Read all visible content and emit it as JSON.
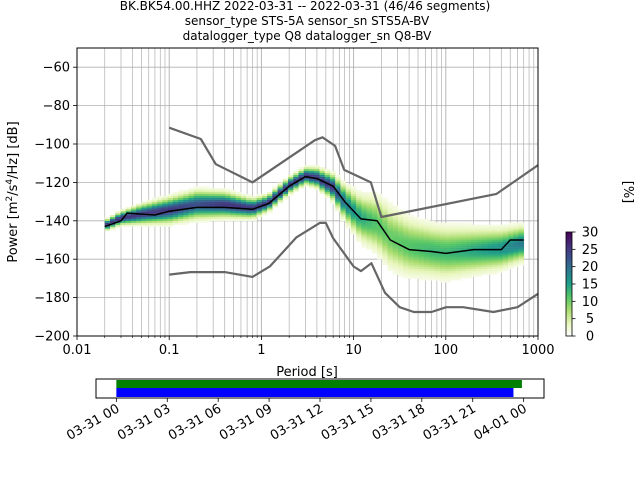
{
  "chart_data": {
    "type": "heatmap",
    "title_lines": [
      "BK.BK54.00.HHZ   2022-03-31 -- 2022-03-31  (46/46 segments)",
      "sensor_type STS-5A sensor_sn STS5A-BV",
      "datalogger_type Q8 datalogger_sn Q8-BV"
    ],
    "xlabel": "Period [s]",
    "ylabel": "Power [m²/s⁴/Hz] [dB]",
    "ylabel_parts": {
      "main": "Power [m",
      "sup1": "2",
      "mid": "/s",
      "sup2": "4",
      "end": "/Hz] [dB]"
    },
    "x_scale": "log",
    "xlim": [
      0.01,
      1000
    ],
    "ylim": [
      -200,
      -50
    ],
    "x_ticks": [
      0.01,
      0.1,
      1,
      10,
      100,
      1000
    ],
    "x_tick_labels": [
      "0.01",
      "0.1",
      "1",
      "10",
      "100",
      "1000"
    ],
    "y_ticks": [
      -200,
      -180,
      -160,
      -140,
      -120,
      -100,
      -80,
      -60
    ],
    "y_tick_labels": [
      "−200",
      "−180",
      "−160",
      "−140",
      "−120",
      "−100",
      "−80",
      "−60"
    ],
    "grid": true,
    "colorbar": {
      "label": "[%]",
      "ticks": [
        0,
        5,
        10,
        15,
        20,
        25,
        30
      ],
      "tick_labels": [
        "0",
        "5",
        "10",
        "15",
        "20",
        "25",
        "30"
      ],
      "range": [
        0,
        30
      ],
      "colors": [
        "#ffffff",
        "#e6f5b8",
        "#a8dc6e",
        "#55c667",
        "#1f9e89",
        "#2b7b8e",
        "#3b528b",
        "#472d7b",
        "#440154"
      ]
    },
    "noise_model_high": {
      "period": [
        0.1,
        0.22,
        0.32,
        0.8,
        3.8,
        4.6,
        6.3,
        7.9,
        15.4,
        20,
        354.8,
        1000
      ],
      "power": [
        -91.5,
        -97.4,
        -110.5,
        -120,
        -98,
        -96.5,
        -101,
        -113.5,
        -120,
        -138,
        -126,
        -111
      ]
    },
    "noise_model_low": {
      "period": [
        0.1,
        0.17,
        0.4,
        0.8,
        1.24,
        2.4,
        4.3,
        5,
        6,
        10,
        12,
        15.6,
        21.9,
        31.6,
        45,
        70,
        101,
        154,
        328,
        600,
        1000
      ],
      "power": [
        -168,
        -166.7,
        -166.7,
        -169.2,
        -163.7,
        -148.6,
        -141.1,
        -141.1,
        -149,
        -163.8,
        -166.2,
        -162.1,
        -177.5,
        -185,
        -187.5,
        -187.5,
        -185,
        -185,
        -187.5,
        -185,
        -178
      ]
    },
    "mode_curve": {
      "period": [
        0.02,
        0.03,
        0.035,
        0.07,
        0.1,
        0.2,
        0.4,
        0.8,
        1.2,
        2,
        3,
        4,
        6,
        8,
        12,
        18,
        25,
        40,
        70,
        100,
        200,
        400,
        500,
        700
      ],
      "power": [
        -143,
        -140,
        -136,
        -137,
        -135,
        -133,
        -133,
        -134,
        -131,
        -122,
        -117,
        -118,
        -122,
        -130,
        -139,
        -140,
        -150,
        -155,
        -156,
        -157,
        -155,
        -155,
        -150,
        -150
      ]
    },
    "psd_cloud": {
      "period": [
        0.02,
        0.03,
        0.05,
        0.1,
        0.2,
        0.4,
        0.8,
        1.2,
        2,
        3,
        4,
        6,
        8,
        12,
        18,
        25,
        40,
        70,
        100,
        200,
        400,
        700
      ],
      "center": [
        -143,
        -139,
        -137,
        -135,
        -132,
        -132,
        -134,
        -131,
        -122,
        -117,
        -118,
        -123,
        -131,
        -139,
        -142,
        -149,
        -154,
        -156,
        -157,
        -156,
        -155,
        -152
      ],
      "spread": [
        2,
        3,
        5,
        7,
        8,
        7,
        5,
        4,
        4,
        4,
        5,
        7,
        10,
        14,
        18,
        20,
        18,
        16,
        16,
        14,
        12,
        10
      ]
    },
    "time_axis": {
      "tick_labels": [
        "03-31 00",
        "03-31 03",
        "03-31 06",
        "03-31 09",
        "03-31 12",
        "03-31 15",
        "03-31 18",
        "03-31 21",
        "04-01 00"
      ],
      "tick_hours": [
        0,
        3,
        6,
        9,
        12,
        15,
        18,
        21,
        24
      ],
      "range_hours": [
        -1.2,
        25.2
      ],
      "bar_green": [
        0,
        23.9
      ],
      "bar_blue": [
        0,
        23.4
      ],
      "color_green": "#008000",
      "color_blue": "#0000ff"
    },
    "colors": {
      "noise_model": "#666666",
      "mode_curve": "#000000",
      "grid": "#b0b0b0"
    }
  }
}
